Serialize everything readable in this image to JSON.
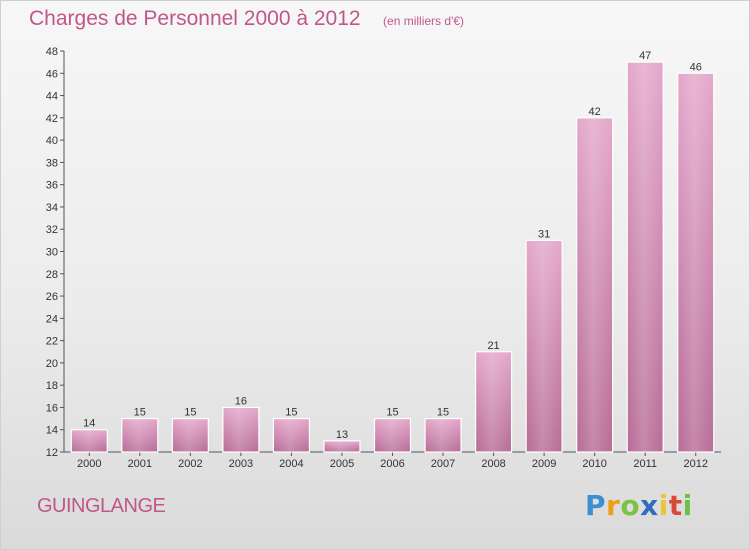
{
  "title": "Charges de Personnel 2000 à 2012",
  "subtitle": "(en milliers d'€)",
  "commune": "GUINGLANGE",
  "logo": {
    "letters": [
      "P",
      "r",
      "o",
      "x",
      "i",
      "t",
      "i"
    ],
    "colors": [
      "#3c8fd1",
      "#e8a21a",
      "#7cc243",
      "#2f6cc0",
      "#e8c53a",
      "#d8493a",
      "#6cc048"
    ]
  },
  "chart_data": {
    "type": "bar",
    "categories": [
      "2000",
      "2001",
      "2002",
      "2003",
      "2004",
      "2005",
      "2006",
      "2007",
      "2008",
      "2009",
      "2010",
      "2011",
      "2012"
    ],
    "values": [
      14,
      15,
      15,
      16,
      15,
      13,
      15,
      15,
      21,
      31,
      42,
      47,
      46
    ],
    "ylim": [
      12,
      48
    ],
    "yticks": [
      12,
      14,
      16,
      18,
      20,
      22,
      24,
      26,
      28,
      30,
      32,
      34,
      36,
      38,
      40,
      42,
      44,
      46,
      48
    ],
    "grid": false,
    "bar_color": "#d98fb8"
  }
}
